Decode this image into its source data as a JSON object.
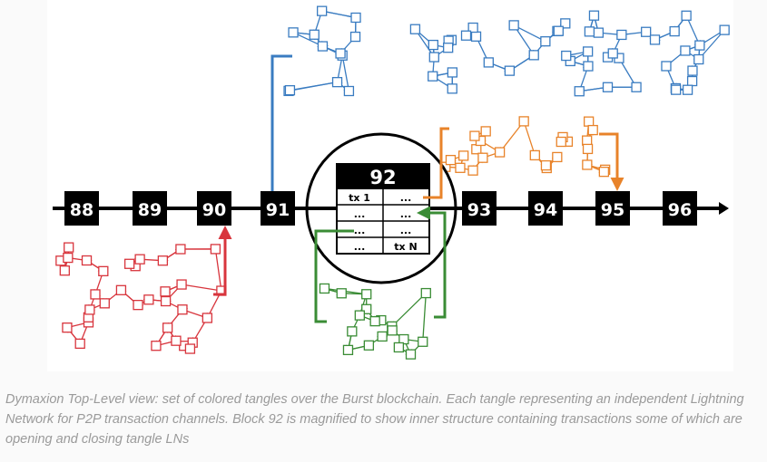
{
  "diagram": {
    "blocks_left": [
      "88",
      "89",
      "90",
      "91"
    ],
    "magnified_block": {
      "label": "92",
      "cells": [
        "tx 1",
        "...",
        "...",
        "...",
        "...",
        "...",
        "...",
        "tx N"
      ]
    },
    "blocks_right": [
      "93",
      "94",
      "95",
      "96"
    ],
    "tangles": [
      {
        "color": "#3a7cc1",
        "attached_block": "91"
      },
      {
        "color": "#e8832a",
        "attached_block": "95"
      },
      {
        "color": "#d8353d",
        "attached_block": "90"
      },
      {
        "color": "#3a8c35",
        "attached_block": "92"
      }
    ],
    "chain_color": "#000000"
  },
  "caption": "Dymaxion Top-Level view: set of colored tangles over the Burst blockchain. Each tangle representing an independent Lightning Network for P2P transaction channels. Block 92 is magnified to show inner structure containing transactions some of which are opening and closing tangle LNs"
}
